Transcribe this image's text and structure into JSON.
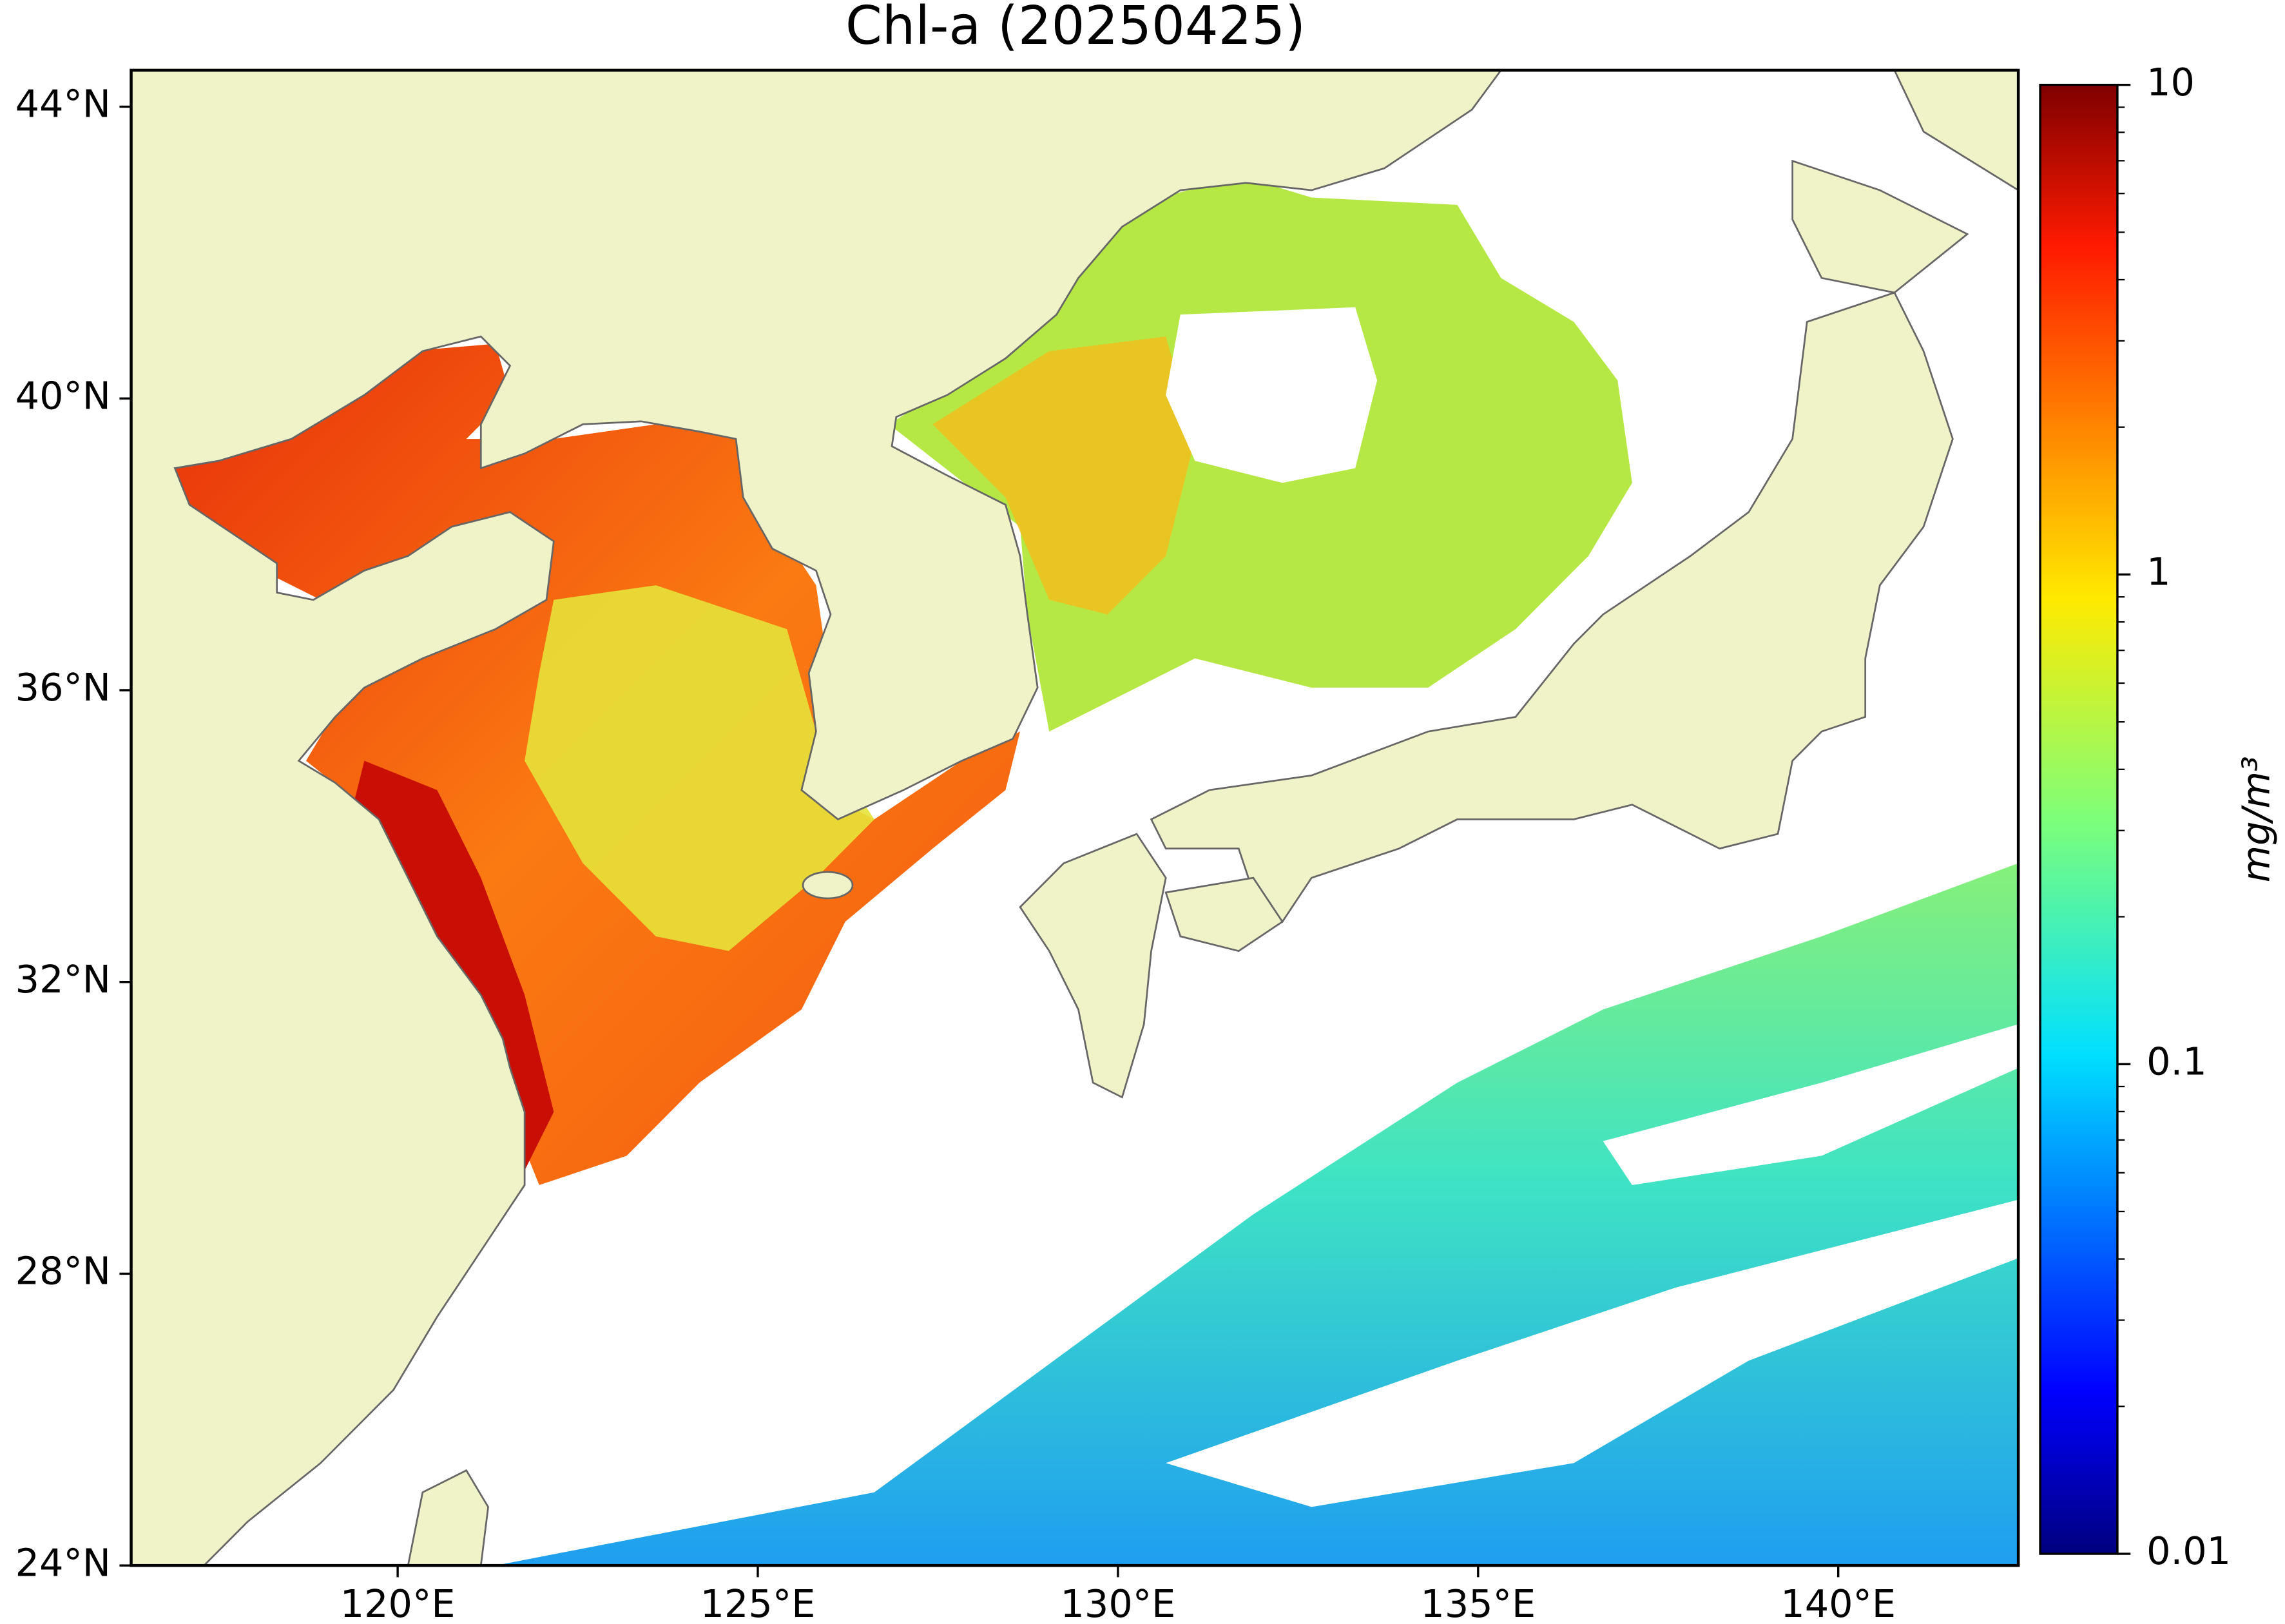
{
  "map": {
    "title": "Chl-a (20250425)",
    "xlim": [
      116.3,
      142.5
    ],
    "ylim": [
      24,
      44.5
    ],
    "xticks": [
      {
        "value": 120,
        "label": "120°E"
      },
      {
        "value": 125,
        "label": "125°E"
      },
      {
        "value": 130,
        "label": "130°E"
      },
      {
        "value": 135,
        "label": "135°E"
      },
      {
        "value": 140,
        "label": "140°E"
      }
    ],
    "yticks": [
      {
        "value": 24,
        "label": "24°N"
      },
      {
        "value": 28,
        "label": "28°N"
      },
      {
        "value": 32,
        "label": "32°N"
      },
      {
        "value": 36,
        "label": "36°N"
      },
      {
        "value": 40,
        "label": "40°N"
      },
      {
        "value": 44,
        "label": "44°N"
      }
    ],
    "colorbar": {
      "label": "mg/m³",
      "lim": [
        0.01,
        10
      ],
      "ticks": [
        0.01,
        0.1,
        1,
        10
      ],
      "log": true,
      "colormap": "jet"
    }
  }
}
